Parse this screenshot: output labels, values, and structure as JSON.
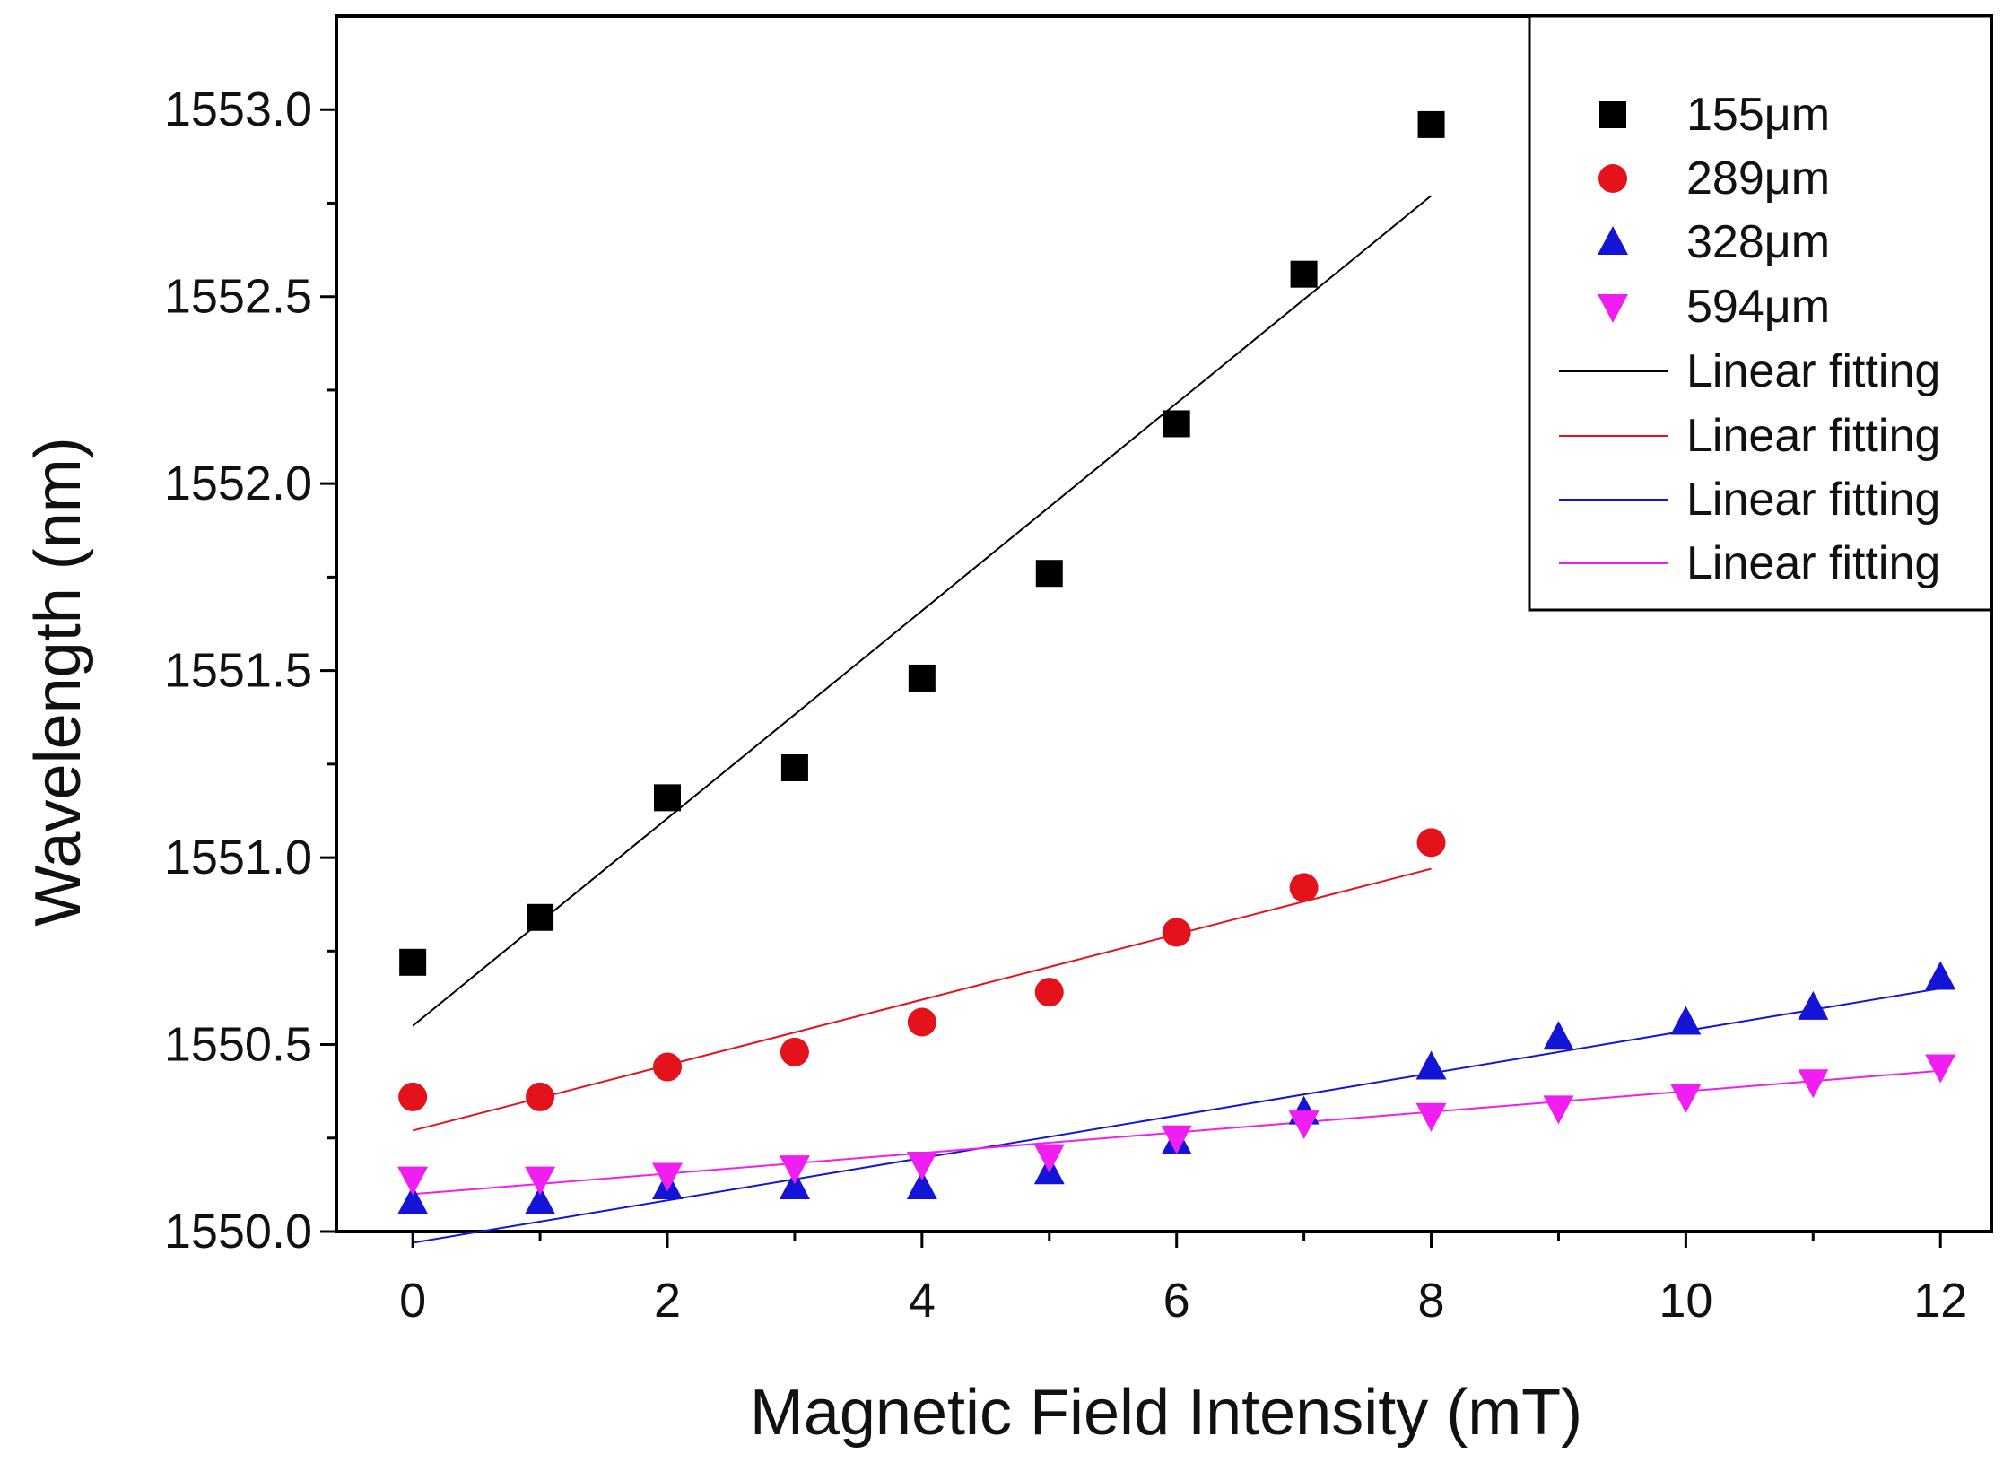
{
  "chart_data": {
    "type": "scatter",
    "title": "",
    "xlabel": "Magnetic Field Intensity (mT)",
    "ylabel": "Wavelength (nm)",
    "xlim": [
      -0.6,
      12.4
    ],
    "ylim": [
      1550.0,
      1553.25
    ],
    "xticks": [
      0,
      2,
      4,
      6,
      8,
      10,
      12
    ],
    "xtick_labels": [
      "0",
      "2",
      "4",
      "6",
      "8",
      "10",
      "12"
    ],
    "yticks": [
      1550.0,
      1550.5,
      1551.0,
      1551.5,
      1552.0,
      1552.5,
      1553.0
    ],
    "ytick_labels": [
      "1550.0",
      "1550.5",
      "1551.0",
      "1551.5",
      "1552.0",
      "1552.5",
      "1553.0"
    ],
    "grid": false,
    "legend_position": "top-right",
    "series": [
      {
        "name": "155μm",
        "marker": "square",
        "color": "#000000",
        "x": [
          0,
          1,
          2,
          3,
          4,
          5,
          6,
          7,
          8
        ],
        "y": [
          1550.72,
          1550.84,
          1551.16,
          1551.24,
          1551.48,
          1551.76,
          1552.16,
          1552.56,
          1552.96
        ]
      },
      {
        "name": "289μm",
        "marker": "circle",
        "color": "#e3121b",
        "x": [
          0,
          1,
          2,
          3,
          4,
          5,
          6,
          7,
          8
        ],
        "y": [
          1550.36,
          1550.36,
          1550.44,
          1550.48,
          1550.56,
          1550.64,
          1550.8,
          1550.92,
          1551.04
        ]
      },
      {
        "name": "328μm",
        "marker": "triangle-up",
        "color": "#1414d6",
        "x": [
          0,
          1,
          2,
          3,
          4,
          5,
          6,
          7,
          8,
          9,
          10,
          11,
          12
        ],
        "y": [
          1550.08,
          1550.08,
          1550.12,
          1550.12,
          1550.12,
          1550.16,
          1550.24,
          1550.32,
          1550.44,
          1550.52,
          1550.56,
          1550.6,
          1550.68
        ]
      },
      {
        "name": "594μm",
        "marker": "triangle-down",
        "color": "#f01ef0",
        "x": [
          0,
          1,
          2,
          3,
          4,
          5,
          6,
          7,
          8,
          9,
          10,
          11,
          12
        ],
        "y": [
          1550.14,
          1550.14,
          1550.15,
          1550.17,
          1550.18,
          1550.2,
          1550.25,
          1550.29,
          1550.31,
          1550.33,
          1550.36,
          1550.4,
          1550.44
        ]
      }
    ],
    "fits": [
      {
        "name": "Linear fitting",
        "color": "#000000",
        "x": [
          0,
          8
        ],
        "y": [
          1550.55,
          1552.77
        ]
      },
      {
        "name": "Linear fitting",
        "color": "#e3121b",
        "x": [
          0,
          8
        ],
        "y": [
          1550.27,
          1550.97
        ]
      },
      {
        "name": "Linear fitting",
        "color": "#1414d6",
        "x": [
          0,
          12
        ],
        "y": [
          1549.97,
          1550.65
        ]
      },
      {
        "name": "Linear fitting",
        "color": "#f01ef0",
        "x": [
          0,
          12
        ],
        "y": [
          1550.1,
          1550.43
        ]
      }
    ]
  }
}
